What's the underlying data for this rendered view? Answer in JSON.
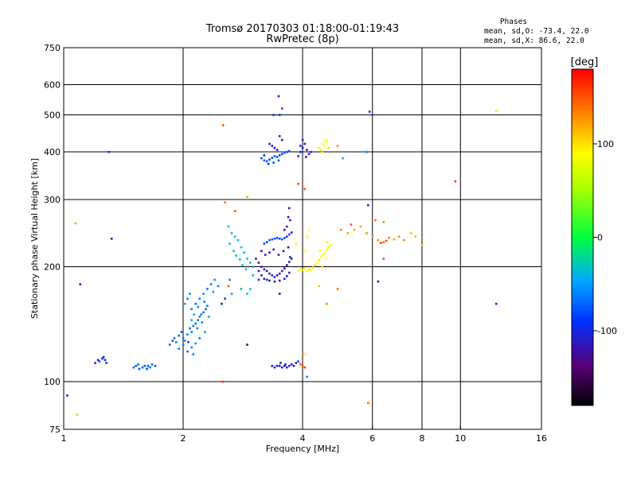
{
  "chart_data": {
    "type": "scatter",
    "title_line1": "Tromsø 20170303 01:18:00-01:19:43",
    "title_line2": "RwPretec (8p)",
    "stats_title": "Phases",
    "stats_line1": "mean, sd,O:  -73.4, 22.0",
    "stats_line2": "mean, sd,X:   86.6, 22.0",
    "xlabel": "Frequency [MHz]",
    "ylabel": "Stationary phase Virtual Height [km]",
    "x_scale": "log",
    "y_scale": "log",
    "xlim": [
      1,
      16
    ],
    "ylim": [
      75,
      750
    ],
    "x_ticks": [
      {
        "value": 1,
        "label": "1"
      },
      {
        "value": 2,
        "label": "2"
      },
      {
        "value": 4,
        "label": "4"
      },
      {
        "value": 6,
        "label": "6"
      },
      {
        "value": 8,
        "label": "8"
      },
      {
        "value": 10,
        "label": "10"
      },
      {
        "value": 16,
        "label": "16"
      }
    ],
    "y_ticks": [
      {
        "value": 75,
        "label": "75"
      },
      {
        "value": 100,
        "label": "100"
      },
      {
        "value": 200,
        "label": "200"
      },
      {
        "value": 300,
        "label": "300"
      },
      {
        "value": 400,
        "label": "400"
      },
      {
        "value": 500,
        "label": "500"
      },
      {
        "value": 600,
        "label": "600"
      },
      {
        "value": 750,
        "label": "750"
      }
    ],
    "x_gridlines": [
      2,
      4,
      6,
      8,
      10
    ],
    "y_gridlines": [
      100,
      200,
      300,
      400,
      500,
      600
    ],
    "grid": true,
    "colorbar": {
      "label": "[deg]",
      "range": [
        -180,
        180
      ],
      "ticks": [
        {
          "value": 100,
          "label": "100"
        },
        {
          "value": 0,
          "label": "0"
        },
        {
          "value": -100,
          "label": "-100"
        }
      ]
    },
    "points": [
      [
        1.02,
        92,
        -100
      ],
      [
        1.07,
        260,
        120
      ],
      [
        1.1,
        180,
        -100
      ],
      [
        1.08,
        82,
        110
      ],
      [
        1.32,
        237,
        -110
      ],
      [
        1.3,
        400,
        -90
      ],
      [
        1.2,
        112,
        -90
      ],
      [
        1.22,
        114,
        -100
      ],
      [
        1.25,
        115,
        -95
      ],
      [
        1.27,
        114,
        -90
      ],
      [
        1.28,
        112,
        -100
      ],
      [
        1.23,
        113,
        -85
      ],
      [
        1.26,
        116,
        -100
      ],
      [
        1.5,
        109,
        -70
      ],
      [
        1.52,
        110,
        -75
      ],
      [
        1.55,
        108,
        -80
      ],
      [
        1.58,
        109,
        -70
      ],
      [
        1.6,
        110,
        -75
      ],
      [
        1.62,
        108,
        -80
      ],
      [
        1.65,
        109,
        -70
      ],
      [
        1.67,
        111,
        -65
      ],
      [
        1.7,
        110,
        -75
      ],
      [
        1.54,
        111,
        -70
      ],
      [
        1.63,
        110,
        -72
      ],
      [
        1.85,
        125,
        -70
      ],
      [
        1.88,
        128,
        -75
      ],
      [
        1.9,
        130,
        -65
      ],
      [
        1.92,
        127,
        -60
      ],
      [
        1.95,
        132,
        -70
      ],
      [
        1.98,
        135,
        -75
      ],
      [
        2.0,
        130,
        -60
      ],
      [
        2.02,
        128,
        -55
      ],
      [
        2.05,
        133,
        -65
      ],
      [
        2.08,
        138,
        -70
      ],
      [
        2.1,
        135,
        -60
      ],
      [
        2.12,
        140,
        -65
      ],
      [
        2.15,
        142,
        -75
      ],
      [
        2.18,
        145,
        -70
      ],
      [
        2.2,
        148,
        -60
      ],
      [
        2.22,
        150,
        -65
      ],
      [
        2.25,
        152,
        -70
      ],
      [
        2.28,
        155,
        -75
      ],
      [
        2.3,
        158,
        -65
      ],
      [
        1.95,
        122,
        -60
      ],
      [
        2.0,
        125,
        -65
      ],
      [
        2.05,
        120,
        -70
      ],
      [
        2.1,
        123,
        -60
      ],
      [
        2.15,
        126,
        -55
      ],
      [
        2.2,
        130,
        -65
      ],
      [
        2.12,
        118,
        -60
      ],
      [
        2.06,
        127,
        -80
      ],
      [
        2.02,
        160,
        -50
      ],
      [
        2.05,
        165,
        -60
      ],
      [
        2.08,
        170,
        -55
      ],
      [
        2.1,
        155,
        -65
      ],
      [
        2.15,
        160,
        -70
      ],
      [
        2.2,
        165,
        -60
      ],
      [
        2.25,
        170,
        -55
      ],
      [
        2.3,
        175,
        -65
      ],
      [
        2.35,
        180,
        -60
      ],
      [
        2.4,
        185,
        -55
      ],
      [
        2.45,
        178,
        -60
      ],
      [
        2.38,
        172,
        -50
      ],
      [
        2.1,
        145,
        -45
      ],
      [
        2.13,
        150,
        -50
      ],
      [
        2.17,
        138,
        -60
      ],
      [
        2.23,
        143,
        -55
      ],
      [
        2.27,
        135,
        -50
      ],
      [
        2.32,
        148,
        -45
      ],
      [
        2.26,
        162,
        -60
      ],
      [
        2.18,
        157,
        -55
      ],
      [
        2.5,
        160,
        -100
      ],
      [
        2.55,
        165,
        -90
      ],
      [
        2.62,
        185,
        -60
      ],
      [
        2.65,
        170,
        -50
      ],
      [
        2.8,
        175,
        -40
      ],
      [
        2.9,
        170,
        -30
      ],
      [
        2.95,
        175,
        -35
      ],
      [
        3.0,
        190,
        -40
      ],
      [
        3.1,
        185,
        -100
      ],
      [
        3.5,
        170,
        -110
      ],
      [
        4.4,
        178,
        110
      ],
      [
        2.9,
        125,
        -140
      ],
      [
        2.52,
        470,
        150
      ],
      [
        2.52,
        100,
        160
      ],
      [
        2.6,
        255,
        -30
      ],
      [
        2.65,
        245,
        -40
      ],
      [
        2.7,
        240,
        -35
      ],
      [
        2.75,
        235,
        -40
      ],
      [
        2.8,
        225,
        -30
      ],
      [
        2.85,
        218,
        -40
      ],
      [
        2.9,
        210,
        -35
      ],
      [
        2.95,
        205,
        -30
      ],
      [
        3.0,
        200,
        -45
      ],
      [
        2.62,
        230,
        -40
      ],
      [
        2.68,
        220,
        -35
      ],
      [
        2.72,
        214,
        -30
      ],
      [
        2.78,
        209,
        -45
      ],
      [
        2.82,
        202,
        -35
      ],
      [
        2.88,
        197,
        -40
      ],
      [
        2.55,
        295,
        140
      ],
      [
        2.7,
        280,
        150
      ],
      [
        2.9,
        305,
        120
      ],
      [
        2.6,
        178,
        150
      ],
      [
        3.05,
        210,
        -120
      ],
      [
        3.1,
        205,
        -110
      ],
      [
        3.15,
        200,
        -100
      ],
      [
        3.2,
        197,
        -110
      ],
      [
        3.25,
        195,
        -120
      ],
      [
        3.3,
        192,
        -110
      ],
      [
        3.35,
        190,
        -100
      ],
      [
        3.4,
        188,
        -110
      ],
      [
        3.45,
        190,
        -120
      ],
      [
        3.5,
        192,
        -110
      ],
      [
        3.55,
        195,
        -100
      ],
      [
        3.6,
        198,
        -110
      ],
      [
        3.65,
        202,
        -120
      ],
      [
        3.7,
        206,
        -110
      ],
      [
        3.75,
        210,
        -100
      ],
      [
        3.1,
        195,
        -100
      ],
      [
        3.15,
        190,
        -110
      ],
      [
        3.2,
        186,
        -120
      ],
      [
        3.25,
        185,
        -110
      ],
      [
        3.3,
        184,
        -100
      ],
      [
        3.4,
        183,
        -110
      ],
      [
        3.5,
        184,
        -120
      ],
      [
        3.6,
        186,
        -110
      ],
      [
        3.65,
        189,
        -100
      ],
      [
        3.7,
        193,
        -110
      ],
      [
        3.2,
        230,
        -80
      ],
      [
        3.25,
        232,
        -85
      ],
      [
        3.3,
        235,
        -80
      ],
      [
        3.35,
        236,
        -75
      ],
      [
        3.4,
        237,
        -80
      ],
      [
        3.45,
        238,
        -85
      ],
      [
        3.5,
        237,
        -80
      ],
      [
        3.55,
        236,
        -75
      ],
      [
        3.6,
        238,
        -80
      ],
      [
        3.65,
        240,
        -85
      ],
      [
        3.7,
        243,
        -80
      ],
      [
        3.15,
        220,
        -120
      ],
      [
        3.22,
        215,
        -110
      ],
      [
        3.3,
        218,
        -120
      ],
      [
        3.38,
        222,
        -115
      ],
      [
        3.48,
        215,
        -110
      ],
      [
        3.58,
        220,
        -120
      ],
      [
        3.68,
        225,
        -115
      ],
      [
        3.72,
        212,
        -110
      ],
      [
        3.65,
        255,
        -120
      ],
      [
        3.68,
        270,
        -125
      ],
      [
        3.7,
        285,
        -120
      ],
      [
        3.72,
        265,
        -115
      ],
      [
        3.6,
        250,
        -130
      ],
      [
        3.75,
        246,
        -120
      ],
      [
        3.15,
        385,
        -80
      ],
      [
        3.2,
        380,
        -75
      ],
      [
        3.25,
        378,
        -80
      ],
      [
        3.3,
        382,
        -85
      ],
      [
        3.35,
        386,
        -80
      ],
      [
        3.4,
        390,
        -75
      ],
      [
        3.45,
        388,
        -80
      ],
      [
        3.5,
        392,
        -85
      ],
      [
        3.55,
        395,
        -80
      ],
      [
        3.6,
        398,
        -75
      ],
      [
        3.65,
        400,
        -80
      ],
      [
        3.7,
        402,
        -85
      ],
      [
        3.2,
        392,
        -90
      ],
      [
        3.28,
        372,
        -85
      ],
      [
        3.38,
        375,
        -80
      ],
      [
        3.48,
        380,
        -75
      ],
      [
        3.3,
        420,
        -110
      ],
      [
        3.35,
        415,
        -120
      ],
      [
        3.4,
        410,
        -110
      ],
      [
        3.45,
        405,
        -115
      ],
      [
        3.5,
        440,
        -110
      ],
      [
        3.55,
        430,
        -120
      ],
      [
        3.48,
        560,
        -110
      ],
      [
        3.38,
        500,
        -90
      ],
      [
        3.55,
        520,
        -80
      ],
      [
        3.5,
        500,
        -100
      ],
      [
        3.9,
        390,
        -110
      ],
      [
        3.95,
        400,
        -100
      ],
      [
        4.0,
        410,
        -110
      ],
      [
        4.05,
        420,
        -115
      ],
      [
        4.1,
        405,
        -110
      ],
      [
        4.15,
        395,
        -105
      ],
      [
        4.2,
        400,
        -110
      ],
      [
        4.0,
        430,
        -100
      ],
      [
        3.95,
        415,
        -105
      ],
      [
        4.08,
        388,
        -110
      ],
      [
        4.4,
        410,
        90
      ],
      [
        4.45,
        405,
        95
      ],
      [
        4.5,
        420,
        80
      ],
      [
        4.55,
        415,
        90
      ],
      [
        4.6,
        425,
        85
      ],
      [
        4.65,
        410,
        100
      ],
      [
        4.48,
        398,
        90
      ],
      [
        4.58,
        430,
        90
      ],
      [
        4.9,
        415,
        130
      ],
      [
        5.05,
        385,
        -40
      ],
      [
        3.9,
        195,
        90
      ],
      [
        3.95,
        197,
        95
      ],
      [
        4.0,
        196,
        100
      ],
      [
        4.05,
        198,
        90
      ],
      [
        4.1,
        195,
        95
      ],
      [
        4.15,
        197,
        100
      ],
      [
        4.2,
        196,
        90
      ],
      [
        4.25,
        199,
        95
      ],
      [
        4.3,
        202,
        100
      ],
      [
        4.35,
        205,
        90
      ],
      [
        4.4,
        208,
        95
      ],
      [
        4.45,
        212,
        90
      ],
      [
        4.5,
        215,
        85
      ],
      [
        4.55,
        218,
        90
      ],
      [
        4.6,
        222,
        80
      ],
      [
        4.65,
        225,
        85
      ],
      [
        4.7,
        228,
        80
      ],
      [
        4.48,
        200,
        100
      ],
      [
        4.58,
        210,
        90
      ],
      [
        4.62,
        232,
        75
      ],
      [
        4.42,
        220,
        85
      ],
      [
        3.85,
        230,
        80
      ],
      [
        4.05,
        220,
        90
      ],
      [
        4.1,
        240,
        95
      ],
      [
        4.15,
        250,
        90
      ],
      [
        5.0,
        250,
        130
      ],
      [
        5.2,
        245,
        120
      ],
      [
        5.4,
        250,
        115
      ],
      [
        5.6,
        255,
        120
      ],
      [
        5.8,
        245,
        125
      ],
      [
        6.0,
        240,
        120
      ],
      [
        6.2,
        235,
        130
      ],
      [
        6.4,
        232,
        140
      ],
      [
        6.6,
        238,
        130
      ],
      [
        6.8,
        236,
        120
      ],
      [
        7.0,
        240,
        125
      ],
      [
        7.2,
        235,
        130
      ],
      [
        7.5,
        245,
        110
      ],
      [
        7.7,
        240,
        115
      ],
      [
        8.0,
        228,
        120
      ],
      [
        6.1,
        265,
        140
      ],
      [
        6.4,
        262,
        130
      ],
      [
        5.3,
        258,
        150
      ],
      [
        6.3,
        231,
        160
      ],
      [
        6.5,
        234,
        150
      ],
      [
        3.35,
        110,
        -110
      ],
      [
        3.4,
        109,
        -105
      ],
      [
        3.45,
        110,
        -110
      ],
      [
        3.5,
        110,
        -115
      ],
      [
        3.55,
        109,
        -110
      ],
      [
        3.6,
        110,
        -105
      ],
      [
        3.65,
        109,
        -110
      ],
      [
        3.7,
        110,
        -115
      ],
      [
        3.75,
        111,
        -110
      ],
      [
        3.8,
        110,
        -105
      ],
      [
        3.85,
        112,
        -100
      ],
      [
        3.9,
        113,
        -80
      ],
      [
        3.95,
        111,
        140
      ],
      [
        4.0,
        110,
        150
      ],
      [
        4.05,
        109,
        160
      ],
      [
        3.62,
        111,
        -105
      ],
      [
        3.52,
        112,
        -110
      ],
      [
        4.02,
        118,
        120
      ],
      [
        3.9,
        330,
        150
      ],
      [
        4.05,
        320,
        150
      ],
      [
        4.1,
        103,
        -60
      ],
      [
        4.6,
        160,
        130
      ],
      [
        4.9,
        175,
        140
      ],
      [
        5.9,
        510,
        -100
      ],
      [
        5.85,
        290,
        -100
      ],
      [
        5.8,
        400,
        -60
      ],
      [
        5.85,
        88,
        140
      ],
      [
        6.2,
        183,
        -110
      ],
      [
        6.4,
        210,
        150
      ],
      [
        9.7,
        335,
        160
      ],
      [
        12.3,
        512,
        100
      ],
      [
        12.3,
        160,
        -100
      ]
    ]
  }
}
